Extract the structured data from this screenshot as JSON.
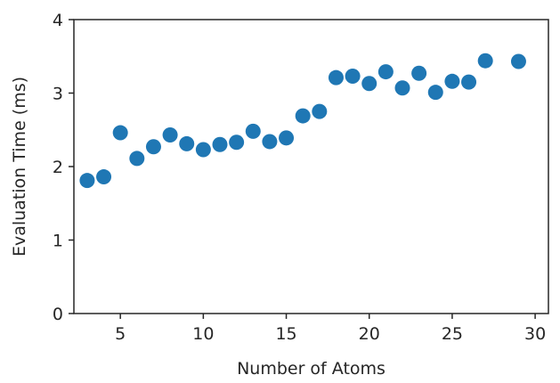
{
  "chart_data": {
    "type": "scatter",
    "xlabel": "Number of Atoms",
    "ylabel": "Evaluation Time (ms)",
    "xlim": [
      2.2,
      30.8
    ],
    "ylim": [
      0,
      4
    ],
    "x_ticks": [
      5,
      10,
      15,
      20,
      25,
      30
    ],
    "y_ticks": [
      0,
      1,
      2,
      3,
      4
    ],
    "grid": false,
    "marker_color": "#1f77b4",
    "series": [
      {
        "points": [
          {
            "x": 3,
            "y": 1.81
          },
          {
            "x": 4,
            "y": 1.86
          },
          {
            "x": 5,
            "y": 2.46
          },
          {
            "x": 6,
            "y": 2.11
          },
          {
            "x": 7,
            "y": 2.27
          },
          {
            "x": 8,
            "y": 2.43
          },
          {
            "x": 9,
            "y": 2.31
          },
          {
            "x": 10,
            "y": 2.23
          },
          {
            "x": 11,
            "y": 2.3
          },
          {
            "x": 12,
            "y": 2.33
          },
          {
            "x": 13,
            "y": 2.48
          },
          {
            "x": 14,
            "y": 2.34
          },
          {
            "x": 15,
            "y": 2.39
          },
          {
            "x": 16,
            "y": 2.69
          },
          {
            "x": 17,
            "y": 2.75
          },
          {
            "x": 18,
            "y": 3.21
          },
          {
            "x": 19,
            "y": 3.23
          },
          {
            "x": 20,
            "y": 3.13
          },
          {
            "x": 21,
            "y": 3.29
          },
          {
            "x": 22,
            "y": 3.07
          },
          {
            "x": 23,
            "y": 3.27
          },
          {
            "x": 24,
            "y": 3.01
          },
          {
            "x": 25,
            "y": 3.16
          },
          {
            "x": 26,
            "y": 3.15
          },
          {
            "x": 27,
            "y": 3.44
          },
          {
            "x": 29,
            "y": 3.43
          }
        ]
      }
    ]
  }
}
